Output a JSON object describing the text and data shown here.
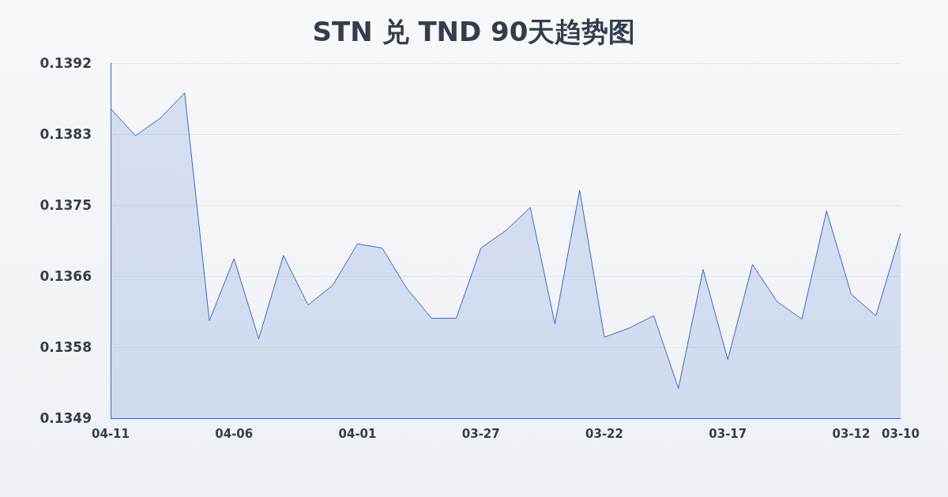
{
  "chart_data": {
    "type": "area",
    "title": "STN 兑 TND 90天趋势图",
    "categories": [
      "04-11",
      null,
      null,
      null,
      null,
      "04-06",
      null,
      null,
      null,
      null,
      "04-01",
      null,
      null,
      null,
      null,
      "03-27",
      null,
      null,
      null,
      null,
      "03-22",
      null,
      null,
      null,
      null,
      "03-17",
      null,
      null,
      null,
      null,
      "03-12",
      null,
      "03-10"
    ],
    "series": [
      {
        "color": "#3a68c8",
        "values": [
          0.13865,
          0.13832,
          0.13853,
          0.13884,
          0.13608,
          0.13683,
          0.13586,
          0.13687,
          0.13627,
          0.13651,
          0.13701,
          0.13696,
          0.13647,
          0.13611,
          0.13611,
          0.13696,
          0.13717,
          0.13745,
          0.13604,
          0.13766,
          0.13588,
          0.13599,
          0.13614,
          0.13526,
          0.1367,
          0.13561,
          0.13676,
          0.13631,
          0.1361,
          0.13741,
          0.1364,
          0.13614,
          0.13714
        ]
      }
    ],
    "ylim": [
      0.1349,
      0.1392
    ],
    "yticks": [
      0.1349,
      {
        "value": 0.13576,
        "label": "0.1358"
      },
      {
        "value": 0.13662,
        "label": "0.1366"
      },
      {
        "value": 0.13748,
        "label": "0.1375"
      },
      {
        "value": 0.13834,
        "label": "0.1383"
      },
      0.1392
    ],
    "grid": "y",
    "marker": "none",
    "line_style": "solid"
  }
}
